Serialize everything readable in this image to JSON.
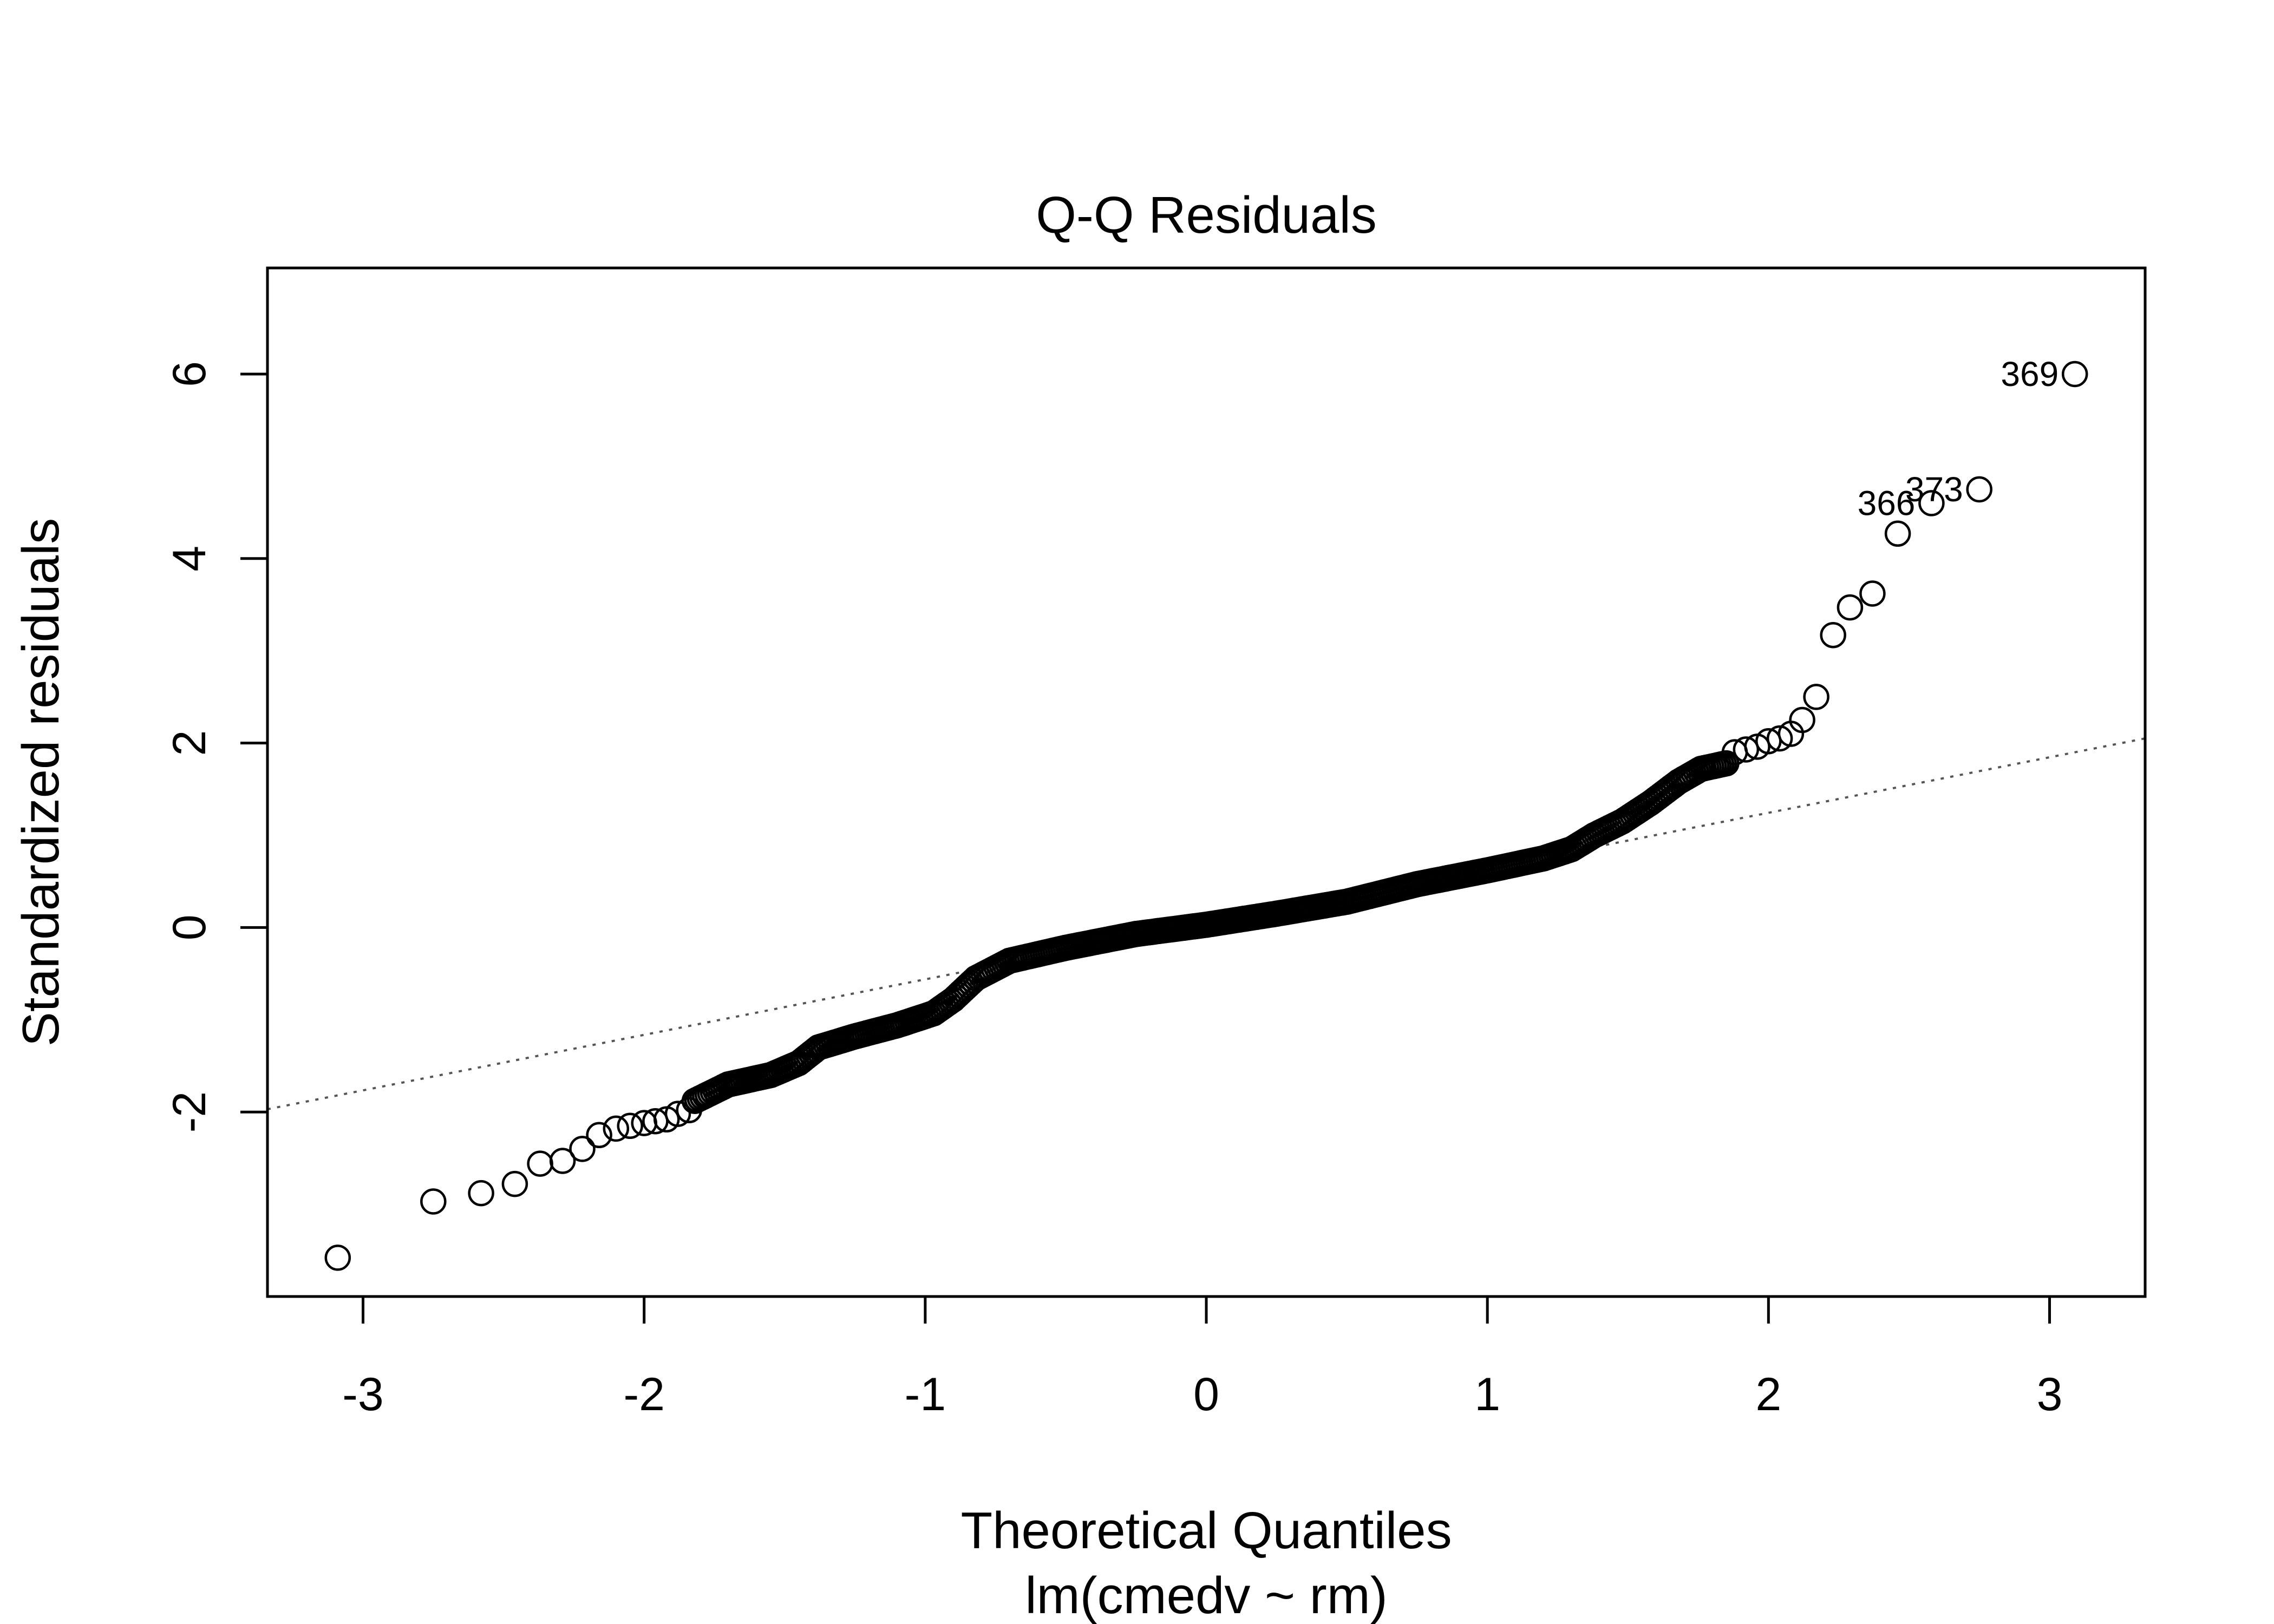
{
  "chart_data": {
    "type": "scatter",
    "title": "Q-Q Residuals",
    "xlabel": "Theoretical Quantiles",
    "sublabel": "lm(cmedv ~ rm)",
    "ylabel": "Standardized residuals",
    "xlim": [
      -3.34,
      3.34
    ],
    "ylim": [
      -4.0,
      7.15
    ],
    "xticks": [
      -3,
      -2,
      -1,
      0,
      1,
      2,
      3
    ],
    "xtick_labels": [
      "-3",
      "-2",
      "-1",
      "0",
      "1",
      "2",
      "3"
    ],
    "yticks": [
      -2,
      0,
      2,
      4,
      6
    ],
    "ytick_labels": [
      "-2",
      "0",
      "2",
      "4",
      "6"
    ],
    "reference_line": {
      "style": "dotted",
      "color": "#555555",
      "from": [
        -3.34,
        -1.97
      ],
      "to": [
        3.34,
        2.05
      ]
    },
    "outliers_tail": [
      {
        "x": -3.09,
        "y": -3.58
      },
      {
        "x": -2.75,
        "y": -2.97
      },
      {
        "x": -2.58,
        "y": -2.88
      },
      {
        "x": -2.46,
        "y": -2.78
      },
      {
        "x": -2.37,
        "y": -2.56
      },
      {
        "x": -2.29,
        "y": -2.53
      },
      {
        "x": -2.22,
        "y": -2.4
      },
      {
        "x": -2.16,
        "y": -2.25
      },
      {
        "x": -2.1,
        "y": -2.18
      },
      {
        "x": -2.05,
        "y": -2.15
      },
      {
        "x": -2.0,
        "y": -2.12
      },
      {
        "x": -1.96,
        "y": -2.1
      },
      {
        "x": -1.92,
        "y": -2.08
      },
      {
        "x": -1.88,
        "y": -2.02
      },
      {
        "x": -1.84,
        "y": -1.98
      },
      {
        "x": 1.88,
        "y": 1.9
      },
      {
        "x": 1.92,
        "y": 1.93
      },
      {
        "x": 1.96,
        "y": 1.96
      },
      {
        "x": 2.0,
        "y": 2.02
      },
      {
        "x": 2.04,
        "y": 2.05
      },
      {
        "x": 2.08,
        "y": 2.1
      },
      {
        "x": 2.12,
        "y": 2.25
      },
      {
        "x": 2.17,
        "y": 2.5
      },
      {
        "x": 2.23,
        "y": 3.17
      },
      {
        "x": 2.29,
        "y": 3.47
      },
      {
        "x": 2.37,
        "y": 3.62
      },
      {
        "x": 2.46,
        "y": 4.27
      },
      {
        "x": 2.58,
        "y": 4.6
      },
      {
        "x": 2.75,
        "y": 4.75
      },
      {
        "x": 3.09,
        "y": 6.0
      }
    ],
    "central_curve": [
      {
        "x": -1.82,
        "y": -1.88
      },
      {
        "x": -1.7,
        "y": -1.7
      },
      {
        "x": -1.55,
        "y": -1.6
      },
      {
        "x": -1.45,
        "y": -1.47
      },
      {
        "x": -1.38,
        "y": -1.3
      },
      {
        "x": -1.25,
        "y": -1.18
      },
      {
        "x": -1.1,
        "y": -1.06
      },
      {
        "x": -0.97,
        "y": -0.93
      },
      {
        "x": -0.9,
        "y": -0.78
      },
      {
        "x": -0.82,
        "y": -0.55
      },
      {
        "x": -0.7,
        "y": -0.36
      },
      {
        "x": -0.5,
        "y": -0.22
      },
      {
        "x": -0.25,
        "y": -0.07
      },
      {
        "x": 0.0,
        "y": 0.03
      },
      {
        "x": 0.25,
        "y": 0.15
      },
      {
        "x": 0.5,
        "y": 0.28
      },
      {
        "x": 0.75,
        "y": 0.47
      },
      {
        "x": 1.0,
        "y": 0.62
      },
      {
        "x": 1.2,
        "y": 0.75
      },
      {
        "x": 1.3,
        "y": 0.85
      },
      {
        "x": 1.38,
        "y": 1.0
      },
      {
        "x": 1.48,
        "y": 1.15
      },
      {
        "x": 1.58,
        "y": 1.35
      },
      {
        "x": 1.68,
        "y": 1.58
      },
      {
        "x": 1.76,
        "y": 1.72
      },
      {
        "x": 1.85,
        "y": 1.78
      }
    ],
    "labeled_points": [
      {
        "label": "369",
        "x": 3.09,
        "y": 6.0
      },
      {
        "label": "373",
        "x": 2.75,
        "y": 4.75
      },
      {
        "label": "366",
        "x": 2.58,
        "y": 4.6
      }
    ]
  }
}
